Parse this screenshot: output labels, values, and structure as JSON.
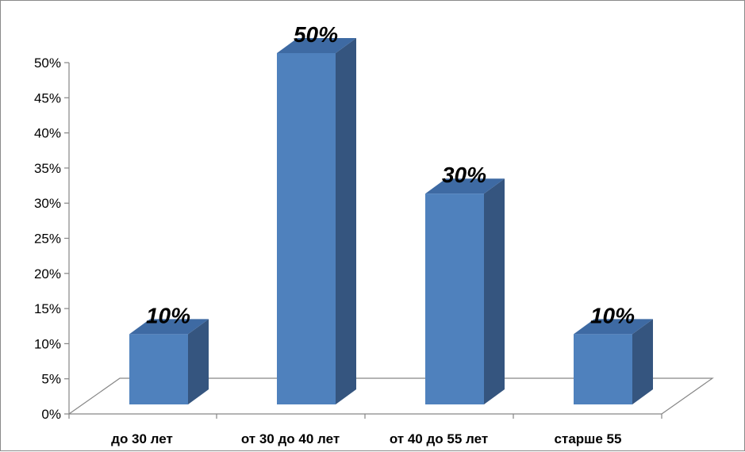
{
  "chart_data": {
    "type": "bar",
    "categories": [
      "до 30 лет",
      "от 30 до 40 лет",
      "от 40 до 55 лет",
      "старше 55"
    ],
    "values": [
      10,
      50,
      30,
      10
    ],
    "data_labels": [
      "10%",
      "50%",
      "30%",
      "10%"
    ],
    "y_tick_labels": [
      "0%",
      "5%",
      "10%",
      "15%",
      "20%",
      "25%",
      "30%",
      "35%",
      "40%",
      "45%",
      "50%"
    ],
    "ylim": [
      0,
      50
    ],
    "unit": "%",
    "title": "",
    "xlabel": "",
    "ylabel": "",
    "grid": false,
    "legend": "none",
    "style": "3d-column",
    "colors": {
      "bar_front": "#4f81bd",
      "bar_top": "#3e6aa3",
      "bar_side": "#35557f",
      "axis": "#868686"
    }
  }
}
